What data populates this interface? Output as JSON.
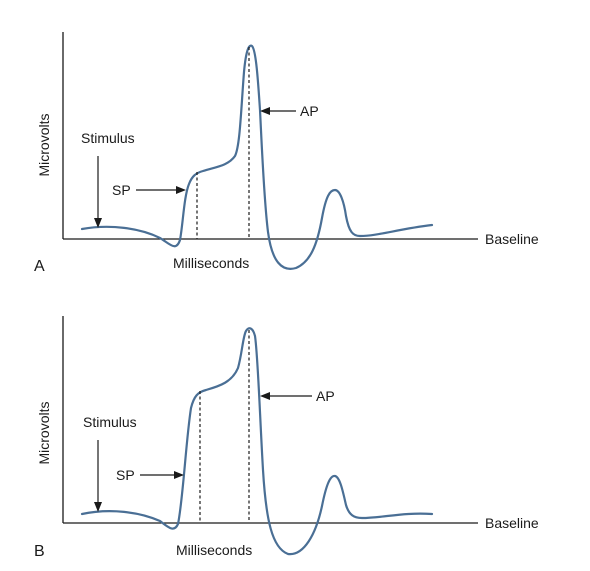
{
  "panels": [
    {
      "letter": "A",
      "y_axis_label": "Microvolts",
      "x_axis_label": "Milliseconds",
      "baseline_label": "Baseline",
      "stimulus_label": "Stimulus",
      "sp_label": "SP",
      "ap_label": "AP"
    },
    {
      "letter": "B",
      "y_axis_label": "Microvolts",
      "x_axis_label": "Milliseconds",
      "baseline_label": "Baseline",
      "stimulus_label": "Stimulus",
      "sp_label": "SP",
      "ap_label": "AP"
    }
  ]
}
